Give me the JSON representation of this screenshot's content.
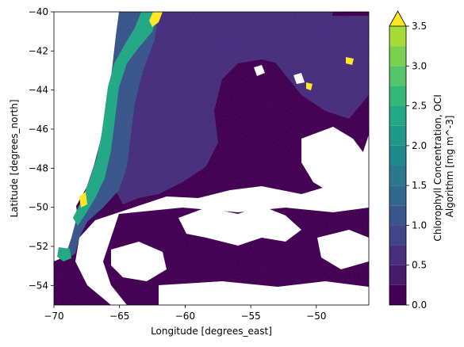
{
  "chart_data": {
    "type": "heatmap",
    "title": "",
    "xlabel": "Longitude [degrees_east]",
    "ylabel": "Latitude [degrees_north]",
    "xlim": [
      -70,
      -46
    ],
    "ylim": [
      -55,
      -40
    ],
    "x_ticks": [
      -70,
      -65,
      -60,
      -55,
      -50
    ],
    "x_tick_labels": [
      "−70",
      "−65",
      "−60",
      "−55",
      "−50"
    ],
    "y_ticks": [
      -54,
      -52,
      -50,
      -48,
      -46,
      -44,
      -42,
      -40
    ],
    "y_tick_labels": [
      "−54",
      "−52",
      "−50",
      "−48",
      "−46",
      "−44",
      "−42",
      "−40"
    ],
    "grid": false,
    "colorbar": {
      "label_lines": [
        "Chlorophyll Concentration, OCI",
        "Algorithm [mg m^-3]"
      ],
      "min": 0.0,
      "max": 3.5,
      "levels": [
        0.0,
        0.25,
        0.5,
        0.75,
        1.0,
        1.25,
        1.5,
        1.75,
        2.0,
        2.25,
        2.5,
        2.75,
        3.0,
        3.25,
        3.5
      ],
      "ticks": [
        0.0,
        0.5,
        1.0,
        1.5,
        2.0,
        2.5,
        3.0,
        3.5
      ],
      "tick_labels": [
        "0.0",
        "0.5",
        "1.0",
        "1.5",
        "2.0",
        "2.5",
        "3.0",
        "3.5"
      ],
      "extend": "max",
      "colors": [
        "#440154",
        "#481a6c",
        "#472f7d",
        "#414487",
        "#39568c",
        "#31688e",
        "#2a788e",
        "#23888e",
        "#1f988b",
        "#22a884",
        "#35b779",
        "#54c568",
        "#7ad151",
        "#a5db36",
        "#d2e21b",
        "#fde725"
      ]
    },
    "colors": {
      "background_ocean": "#440154",
      "mid_region": "#472f7d",
      "shelf": "#39568c",
      "coastal": "#22a884",
      "hotspot": "#fde725",
      "missing": "#ffffff"
    }
  }
}
